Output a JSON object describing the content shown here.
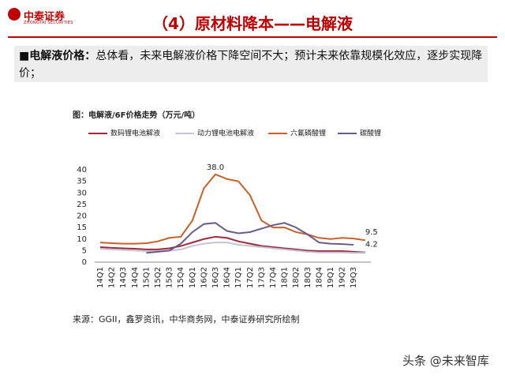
{
  "header": {
    "logo": "中泰证券",
    "logo_en": "ZHONGTAI SECURITIES",
    "title": "（4）原材料降本——电解液"
  },
  "bullet": {
    "label": "电解液价格：",
    "text": "总体看，未来电解液价格下降空间不大；预计未来依靠规模化效应，逐步实现降价；"
  },
  "source": "来源：GGII，鑫罗资讯，中华商务网，中泰证券研究所绘制",
  "watermark": "头条 @未来智库",
  "chart_data": {
    "type": "line",
    "title": "图：电解液/6F价格走势（万元/吨）",
    "categories": [
      "14Q1",
      "14Q2",
      "14Q3",
      "14Q4",
      "15Q1",
      "15Q2",
      "15Q3",
      "15Q4",
      "16Q1",
      "16Q2",
      "16Q3",
      "16Q4",
      "17Q1",
      "17Q2",
      "17Q3",
      "17Q4",
      "18Q1",
      "18Q2",
      "18Q3",
      "18Q4",
      "19Q1",
      "19Q2",
      "19Q3",
      null
    ],
    "series": [
      {
        "name": "数码锂电池解液",
        "color": "#a0283c",
        "values": [
          6.5,
          6.2,
          6,
          5.8,
          5.5,
          5.5,
          6,
          7,
          8.5,
          10,
          11,
          10.5,
          9,
          8,
          7,
          6.5,
          6,
          5.5,
          5,
          4.8,
          4.8,
          4.8,
          4.5,
          4.2
        ],
        "value_labels": [
          null,
          null,
          null,
          null,
          null,
          null,
          null,
          null,
          null,
          null,
          null,
          null,
          null,
          null,
          null,
          null,
          null,
          null,
          null,
          null,
          null,
          null,
          null,
          "4.2"
        ]
      },
      {
        "name": "动力锂电池电解液",
        "color": "#c4c4d4",
        "values": [
          5.8,
          5.5,
          5.3,
          5,
          4.8,
          4.8,
          5,
          5.5,
          7,
          8,
          8.5,
          8.5,
          7.5,
          7,
          6.5,
          6,
          5.5,
          5,
          4.5,
          4.2,
          4.2,
          4.2,
          4,
          4
        ]
      },
      {
        "name": "六氟磷酸锂",
        "color": "#c8602a",
        "values": [
          8.5,
          8.2,
          8,
          8,
          8.2,
          9,
          10.5,
          11,
          18,
          32,
          38,
          36,
          35,
          29,
          18,
          15,
          15,
          13,
          12,
          10.5,
          10,
          10.5,
          10.2,
          9.5
        ],
        "value_labels": [
          null,
          null,
          null,
          null,
          null,
          null,
          null,
          null,
          null,
          null,
          "38.0",
          null,
          null,
          null,
          null,
          null,
          null,
          null,
          null,
          null,
          null,
          null,
          null,
          "9.5"
        ]
      },
      {
        "name": "碳酸锂",
        "color": "#6a5a8c",
        "values": [
          null,
          null,
          null,
          null,
          4,
          4.5,
          5,
          8,
          13,
          16.5,
          17,
          13.5,
          12.5,
          13,
          14.5,
          16,
          17,
          15,
          12,
          8.5,
          8,
          7.8,
          7.5,
          null
        ]
      }
    ],
    "ylim": [
      0,
      40
    ],
    "yticks": [
      0,
      5,
      10,
      15,
      20,
      25,
      30,
      35,
      40
    ],
    "grid": false
  }
}
